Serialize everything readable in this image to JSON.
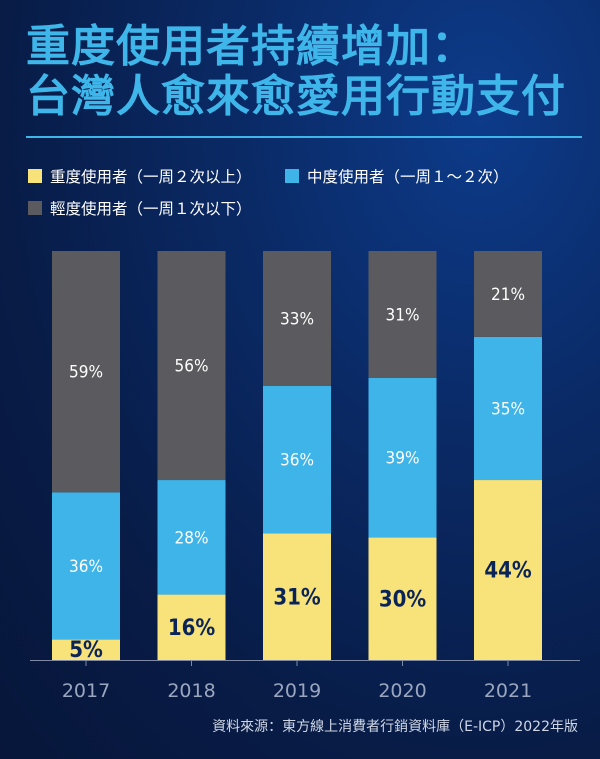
{
  "title_line1": "重度使用者持續增加：",
  "title_line2": "台灣人愈來愈愛用行動支付",
  "legend": [
    {
      "label": "重度使用者（一周２次以上）",
      "color": "#f8e27a"
    },
    {
      "label": "中度使用者（一周１～２次）",
      "color": "#3eb4e8"
    },
    {
      "label": "輕度使用者（一周１次以下）",
      "color": "#5b5b5f"
    }
  ],
  "source": "資料來源：東方線上消費者行銷資料庫（E-ICP）2022年版",
  "chart_data": {
    "type": "bar",
    "stacked": true,
    "normalized": true,
    "categories": [
      "2017",
      "2018",
      "2019",
      "2020",
      "2021"
    ],
    "series": [
      {
        "name": "重度使用者（一周２次以上）",
        "color": "#f8e27a",
        "values": [
          5,
          16,
          31,
          30,
          44
        ],
        "labels": [
          "5%",
          "16%",
          "31%",
          "30%",
          "44%"
        ]
      },
      {
        "name": "中度使用者（一周１～２次）",
        "color": "#3eb4e8",
        "values": [
          36,
          28,
          36,
          39,
          35
        ],
        "labels": [
          "36%",
          "28%",
          "36%",
          "39%",
          "35%"
        ]
      },
      {
        "name": "輕度使用者（一周１次以下）",
        "color": "#5b5b5f",
        "values": [
          59,
          56,
          33,
          31,
          21
        ],
        "labels": [
          "59%",
          "56%",
          "33%",
          "31%",
          "21%"
        ]
      }
    ],
    "ylim": [
      0,
      100
    ],
    "xlabel": "",
    "ylabel": ""
  }
}
